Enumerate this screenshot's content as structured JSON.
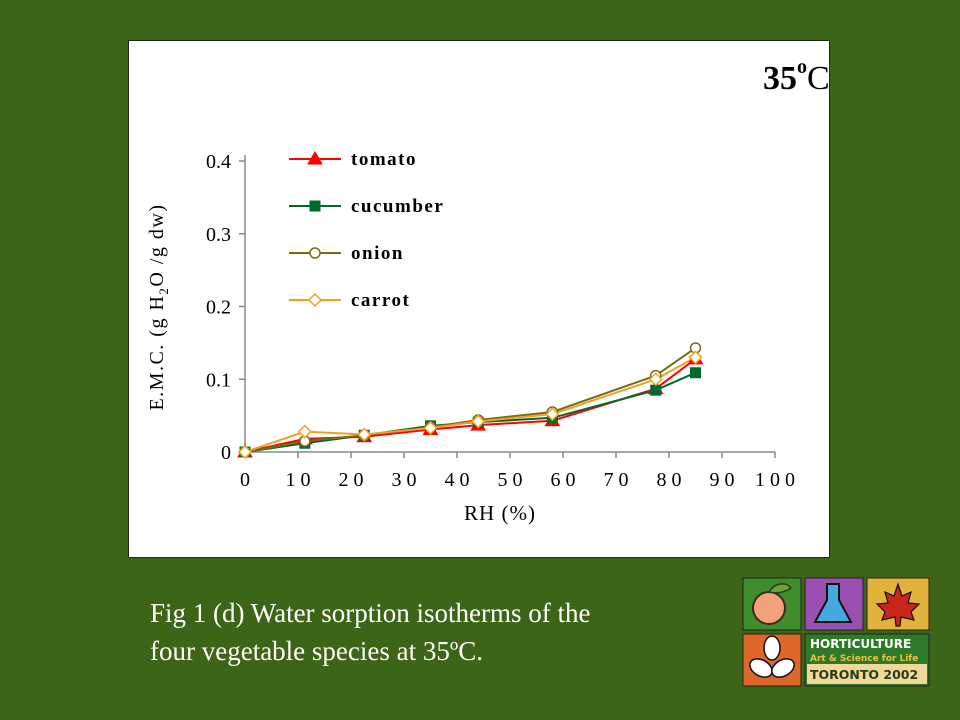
{
  "chart_data": {
    "type": "line",
    "temperature_label": "35",
    "temperature_sup": "o",
    "temperature_unit": "C",
    "xlabel": "RH (%)",
    "ylabel": "E.M.C. (g H2O /g dw)",
    "ylabel_parts": [
      "E.M.C. (g H",
      "2",
      "O /g dw)"
    ],
    "xlim": [
      0,
      100
    ],
    "ylim": [
      0,
      0.4
    ],
    "x_ticks": [
      0,
      10,
      20,
      30,
      40,
      50,
      60,
      70,
      80,
      90,
      100
    ],
    "x_tick_labels": [
      "0",
      "1 0",
      "2 0",
      "3 0",
      "4 0",
      "5 0",
      "6 0",
      "7 0",
      "8 0",
      "9 0",
      "1 0 0"
    ],
    "y_ticks": [
      0,
      0.1,
      0.2,
      0.3,
      0.4
    ],
    "y_tick_labels": [
      "0",
      "0.1",
      "0.2",
      "0.3",
      "0.4"
    ],
    "legend_position": "top-left",
    "series": [
      {
        "name": "tomato",
        "color": "#ff0000",
        "marker": "triangle",
        "x": [
          0,
          11.3,
          22.5,
          35,
          44,
          58,
          77.5,
          85
        ],
        "y": [
          0,
          0.018,
          0.021,
          0.031,
          0.037,
          0.043,
          0.087,
          0.128
        ]
      },
      {
        "name": "cucumber",
        "color": "#006a2e",
        "marker": "square",
        "x": [
          0,
          11.3,
          22.5,
          35,
          44,
          58,
          77.5,
          85
        ],
        "y": [
          0,
          0.012,
          0.023,
          0.036,
          0.041,
          0.047,
          0.085,
          0.109
        ]
      },
      {
        "name": "onion",
        "color": "#7a6a14",
        "marker": "circle",
        "x": [
          0,
          11.3,
          22.5,
          35,
          44,
          58,
          77.5,
          85
        ],
        "y": [
          0,
          0.015,
          0.023,
          0.034,
          0.044,
          0.055,
          0.105,
          0.143
        ]
      },
      {
        "name": "carrot",
        "color": "#f0a020",
        "marker": "diamond",
        "x": [
          0,
          11.3,
          22.5,
          35,
          44,
          58,
          77.5,
          85
        ],
        "y": [
          0,
          0.028,
          0.024,
          0.033,
          0.042,
          0.052,
          0.1,
          0.13
        ]
      }
    ]
  },
  "caption": {
    "line1": "Fig 1 (d) Water sorption isotherms of the",
    "line2": "four vegetable species at 35ºC."
  },
  "logo": {
    "line1": "HORTICULTURE",
    "line2": "Art & Science for Life",
    "line3": "TORONTO 2002"
  }
}
